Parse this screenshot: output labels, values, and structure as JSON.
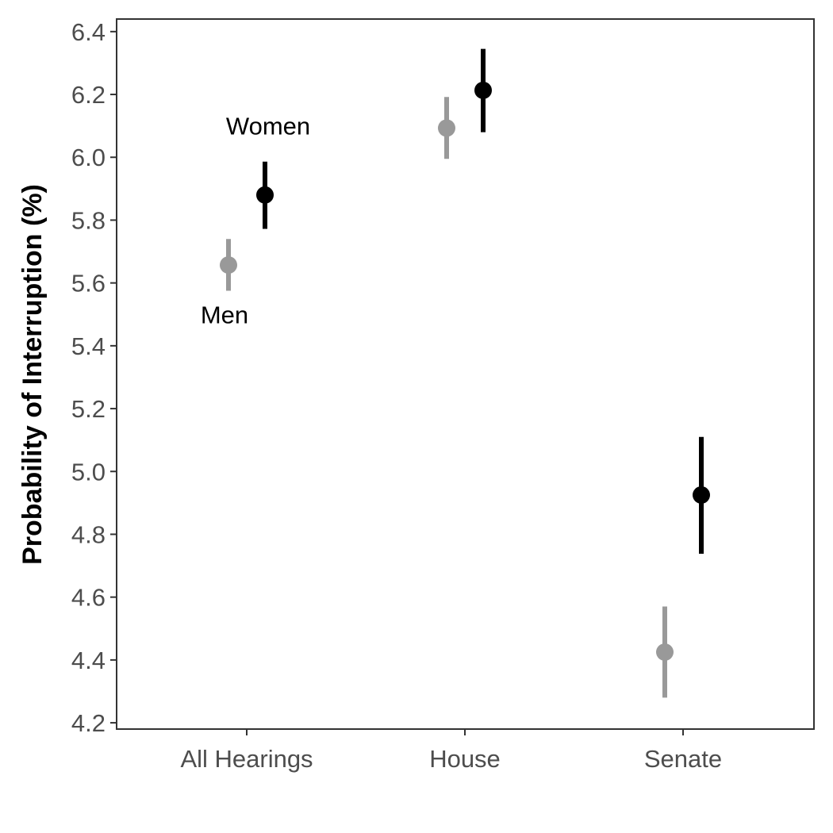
{
  "colors": {
    "men": "#999999",
    "women": "#000000",
    "axis": "#333333",
    "tick_text": "#4d4d4d"
  },
  "chart_data": {
    "type": "scatter",
    "title": "",
    "xlabel": "",
    "ylabel": "Probability of Interruption (%)",
    "ylim": [
      4.18,
      6.44
    ],
    "yticks": [
      "4.2",
      "4.4",
      "4.6",
      "4.8",
      "5.0",
      "5.2",
      "5.4",
      "5.6",
      "5.8",
      "6.0",
      "6.2",
      "6.4"
    ],
    "categories": [
      "All Hearings",
      "House",
      "Senate"
    ],
    "grid": false,
    "legend": "none",
    "series": [
      {
        "name": "Men",
        "color": "#999999",
        "values": [
          5.657,
          6.093,
          4.425
        ],
        "lower": [
          5.575,
          5.995,
          4.28
        ],
        "upper": [
          5.74,
          6.192,
          4.57
        ]
      },
      {
        "name": "Women",
        "color": "#000000",
        "values": [
          5.88,
          6.213,
          4.925
        ],
        "lower": [
          5.772,
          6.08,
          4.738
        ],
        "upper": [
          5.986,
          6.345,
          5.11
        ]
      }
    ],
    "annotations": [
      {
        "text": "Women",
        "x": "All Hearings",
        "y": 6.1
      },
      {
        "text": "Men",
        "x": "All Hearings",
        "y": 5.5
      }
    ]
  }
}
